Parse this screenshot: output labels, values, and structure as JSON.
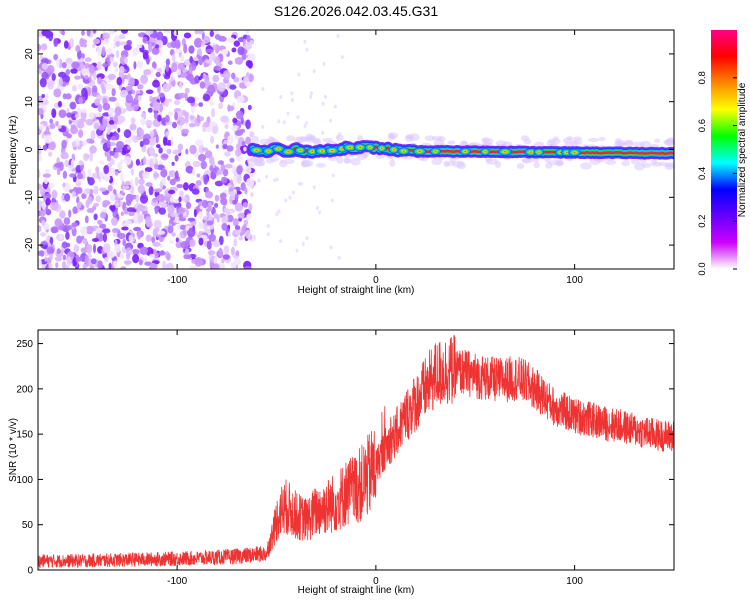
{
  "title": "S126.2026.042.03.45.G31",
  "chart_data": [
    {
      "type": "heatmap",
      "name": "spectrogram",
      "xlabel": "Height of straight line (km)",
      "ylabel": "Frequency (Hz)",
      "xlim": [
        -170,
        150
      ],
      "ylim": [
        -25,
        25
      ],
      "xticks": [
        -100,
        0,
        100
      ],
      "yticks": [
        -20,
        -10,
        0,
        10,
        20
      ],
      "xtick_labels": [
        "-100",
        "0",
        "100"
      ],
      "ytick_labels": [
        "-20",
        "-10",
        "0",
        "10",
        "20"
      ],
      "noise_region_x": [
        -170,
        -62
      ],
      "signal_start_x": -62,
      "signal_freq_track": [
        {
          "x": -62,
          "f": 0.0
        },
        {
          "x": -55,
          "f": -0.5
        },
        {
          "x": -50,
          "f": 0.3
        },
        {
          "x": -45,
          "f": -0.6
        },
        {
          "x": -40,
          "f": 0.0
        },
        {
          "x": -35,
          "f": -0.4
        },
        {
          "x": -25,
          "f": -0.3
        },
        {
          "x": -20,
          "f": -0.2
        },
        {
          "x": -15,
          "f": 0.4
        },
        {
          "x": -5,
          "f": 0.5
        },
        {
          "x": 5,
          "f": 0.2
        },
        {
          "x": 15,
          "f": -0.4
        },
        {
          "x": 40,
          "f": -0.4
        },
        {
          "x": 70,
          "f": -0.5
        },
        {
          "x": 90,
          "f": -0.6
        },
        {
          "x": 150,
          "f": -0.8
        }
      ],
      "colorbar": {
        "label": "Normalized spectral amplitude",
        "range": [
          0.0,
          1.0
        ],
        "ticks": [
          0.0,
          0.2,
          0.4,
          0.6,
          0.8
        ],
        "tick_labels": [
          "0.0",
          "0.2",
          "0.4",
          "0.6",
          "0.8"
        ],
        "colors": [
          "#ffffff",
          "#cc00ff",
          "#6600ff",
          "#0000ff",
          "#00ffff",
          "#00ff00",
          "#ffff00",
          "#ff8800",
          "#ff0000",
          "#ff0088"
        ]
      }
    },
    {
      "type": "line",
      "name": "snr",
      "xlabel": "Height of straight line (km)",
      "ylabel": "SNR (10 * v/v)",
      "xlim": [
        -170,
        150
      ],
      "ylim": [
        0,
        265
      ],
      "xticks": [
        -100,
        0,
        100
      ],
      "yticks": [
        0,
        50,
        100,
        150,
        200,
        250
      ],
      "xtick_labels": [
        "-100",
        "0",
        "100"
      ],
      "ytick_labels": [
        "0",
        "50",
        "100",
        "150",
        "200",
        "250"
      ],
      "color": "#ee3333",
      "series": [
        {
          "name": "SNR",
          "x": [
            -170,
            -150,
            -130,
            -110,
            -90,
            -70,
            -55,
            -52,
            -50,
            -48,
            -45,
            -40,
            -35,
            -30,
            -25,
            -20,
            -15,
            -10,
            -5,
            0,
            5,
            10,
            15,
            20,
            25,
            30,
            35,
            40,
            45,
            50,
            55,
            60,
            65,
            70,
            75,
            80,
            85,
            90,
            95,
            100,
            105,
            110,
            115,
            120,
            125,
            130,
            135,
            140,
            145,
            150
          ],
          "y": [
            10,
            10,
            11,
            12,
            13,
            15,
            18,
            40,
            55,
            65,
            70,
            60,
            55,
            65,
            70,
            75,
            85,
            90,
            100,
            115,
            135,
            150,
            170,
            185,
            200,
            215,
            220,
            220,
            218,
            215,
            212,
            210,
            210,
            212,
            208,
            200,
            190,
            180,
            175,
            170,
            168,
            165,
            162,
            160,
            158,
            155,
            152,
            150,
            148,
            148
          ]
        }
      ]
    }
  ]
}
